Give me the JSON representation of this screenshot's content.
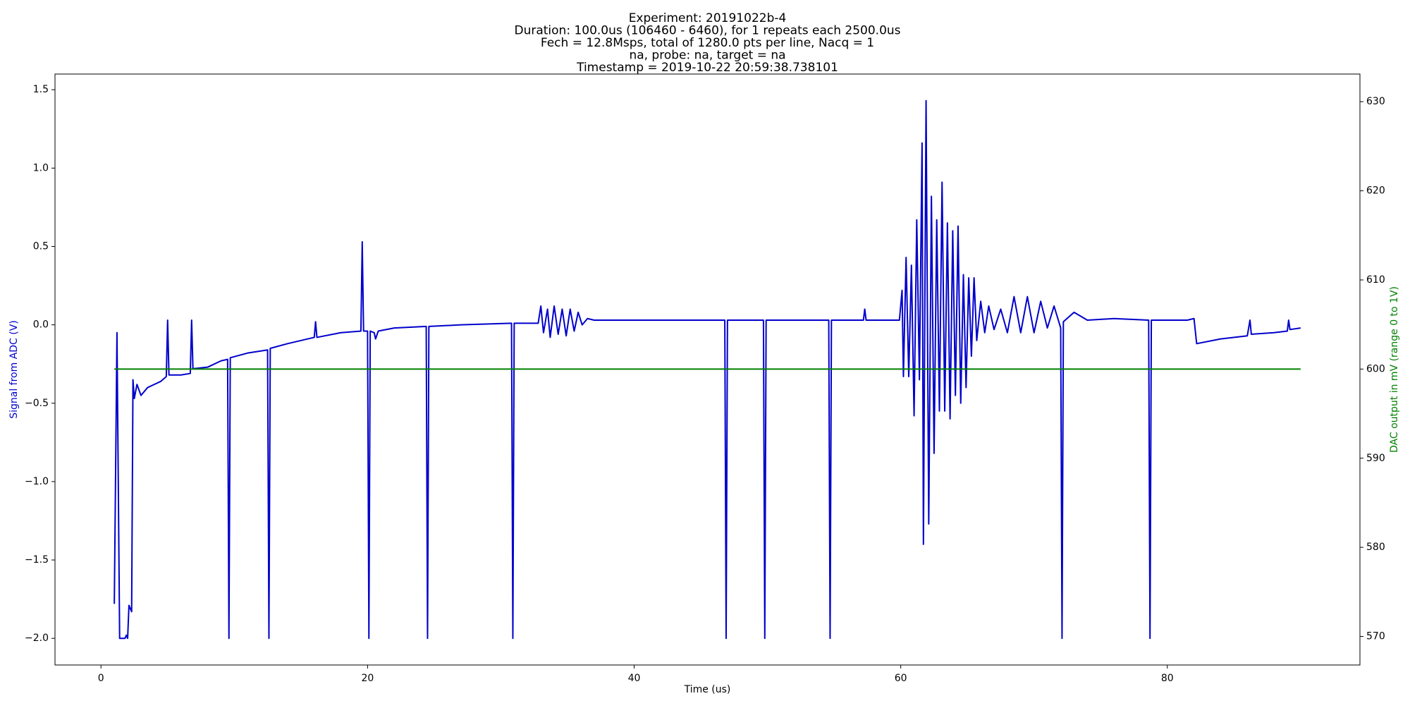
{
  "chart_data": {
    "type": "line",
    "title": [
      "Experiment: 20191022b-4",
      "Duration: 100.0us (106460 - 6460), for 1 repeats each 2500.0us",
      "Fech = 12.8Msps, total of 1280.0 pts per line, Nacq = 1",
      "na, probe: na, target = na",
      "Timestamp = 2019-10-22 20:59:38.738101"
    ],
    "xlabel": "Time (us)",
    "ylabel": "Signal from ADC (V)",
    "y2label": "DAC output in mV (range 0 to 1V)",
    "ylabel_color": "#0000cc",
    "y2label_color": "#008000",
    "xlim": [
      -3.45,
      94.45
    ],
    "ylim": [
      -2.17,
      1.6
    ],
    "y2lim": [
      566.8,
      633.1
    ],
    "xticks": [
      0,
      20,
      40,
      60,
      80
    ],
    "yticks": [
      {
        "value": -2,
        "label": "−2.0"
      },
      {
        "value": -1.5,
        "label": "−1.5"
      },
      {
        "value": -1,
        "label": "−1.0"
      },
      {
        "value": -0.5,
        "label": "−0.5"
      },
      {
        "value": 0,
        "label": "0.0"
      },
      0.5,
      {
        "value": 1,
        "label": "1.0"
      },
      1.5
    ],
    "y2ticks": [
      570,
      580,
      590,
      600,
      610,
      620,
      630
    ],
    "series": [
      {
        "name": "Signal from ADC (V)",
        "color": "#0000cc",
        "axis": "y",
        "x": [
          1.0,
          1.2,
          1.4,
          1.8,
          1.9,
          2.0,
          2.1,
          2.3,
          2.4,
          2.5,
          2.7,
          3.0,
          3.5,
          4.0,
          4.5,
          4.9,
          5.0,
          5.1,
          6.0,
          6.7,
          6.8,
          6.9,
          8,
          9,
          9.5,
          9.6,
          9.7,
          11,
          12.5,
          12.6,
          12.7,
          14,
          16,
          16.1,
          16.2,
          18,
          19.5,
          19.6,
          19.7,
          20.0,
          20.1,
          20.2,
          20.5,
          20.6,
          20.8,
          22,
          24.4,
          24.5,
          24.6,
          27,
          30.8,
          30.9,
          31,
          32.8,
          33.0,
          33.2,
          33.5,
          33.7,
          34,
          34.3,
          34.6,
          34.9,
          35.2,
          35.5,
          35.8,
          36.1,
          36.5,
          37,
          40,
          43,
          46.8,
          46.9,
          47.0,
          49.7,
          49.8,
          49.9,
          54.6,
          54.7,
          54.8,
          57.2,
          57.3,
          57.4,
          59.9,
          60.1,
          60.2,
          60.4,
          60.6,
          60.8,
          61.0,
          61.2,
          61.4,
          61.6,
          61.7,
          61.9,
          62.1,
          62.3,
          62.5,
          62.7,
          62.9,
          63.1,
          63.3,
          63.5,
          63.7,
          63.9,
          64.1,
          64.3,
          64.5,
          64.7,
          64.9,
          65.1,
          65.3,
          65.5,
          65.7,
          66,
          66.3,
          66.6,
          67,
          67.5,
          68,
          68.5,
          69,
          69.5,
          70,
          70.5,
          71,
          71.5,
          72.0,
          72.1,
          72.2,
          73,
          74,
          76,
          78.6,
          78.7,
          78.8,
          81.5,
          82.0,
          82.2,
          84,
          86,
          86.2,
          86.3,
          88,
          89,
          89.1,
          89.2,
          90
        ],
        "values": [
          -1.78,
          -0.05,
          -2.0,
          -2.0,
          -1.98,
          -2.0,
          -1.79,
          -1.83,
          -0.35,
          -0.47,
          -0.38,
          -0.45,
          -0.4,
          -0.38,
          -0.36,
          -0.33,
          0.03,
          -0.32,
          -0.32,
          -0.31,
          0.03,
          -0.28,
          -0.27,
          -0.23,
          -0.22,
          -2.0,
          -0.21,
          -0.18,
          -0.16,
          -2.0,
          -0.15,
          -0.12,
          -0.08,
          0.02,
          -0.08,
          -0.05,
          -0.04,
          0.53,
          -0.04,
          -0.04,
          -2.0,
          -0.04,
          -0.05,
          -0.09,
          -0.04,
          -0.02,
          -0.01,
          -2.0,
          -0.01,
          0.0,
          0.01,
          -2.0,
          0.01,
          0.01,
          0.12,
          -0.05,
          0.1,
          -0.08,
          0.12,
          -0.06,
          0.1,
          -0.07,
          0.1,
          -0.04,
          0.08,
          0.0,
          0.04,
          0.03,
          0.03,
          0.03,
          0.03,
          -2.0,
          0.03,
          0.03,
          -2.0,
          0.03,
          0.03,
          -2.0,
          0.03,
          0.03,
          0.1,
          0.03,
          0.03,
          0.22,
          -0.33,
          0.43,
          -0.33,
          0.38,
          -0.58,
          0.67,
          -0.35,
          1.16,
          -1.4,
          1.43,
          -1.27,
          0.82,
          -0.82,
          0.67,
          -0.55,
          0.91,
          -0.55,
          0.65,
          -0.6,
          0.6,
          -0.45,
          0.63,
          -0.5,
          0.32,
          -0.4,
          0.3,
          -0.2,
          0.3,
          -0.1,
          0.15,
          -0.05,
          0.12,
          -0.03,
          0.1,
          -0.05,
          0.18,
          -0.05,
          0.18,
          -0.05,
          0.15,
          -0.02,
          0.12,
          -0.02,
          -2.0,
          0.02,
          0.08,
          0.03,
          0.04,
          0.03,
          -2.0,
          0.03,
          0.03,
          0.04,
          -0.12,
          -0.09,
          -0.07,
          0.03,
          -0.06,
          -0.05,
          -0.04,
          0.03,
          -0.03,
          -0.02
        ]
      },
      {
        "name": "DAC output in mV (range 0 to 1V)",
        "color": "#008000",
        "axis": "y2",
        "x": [
          1,
          90
        ],
        "values": [
          600,
          600
        ]
      }
    ]
  }
}
